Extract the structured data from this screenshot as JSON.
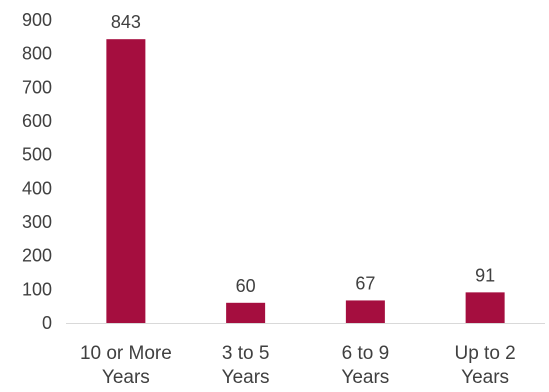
{
  "chart_data": {
    "type": "bar",
    "categories": [
      [
        "10 or More",
        "Years"
      ],
      [
        "3 to 5",
        "Years"
      ],
      [
        "6 to 9",
        "Years"
      ],
      [
        "Up to 2",
        "Years"
      ]
    ],
    "values": [
      843,
      60,
      67,
      91
    ],
    "data_labels": [
      "843",
      "60",
      "67",
      "91"
    ],
    "ylim": [
      0,
      900
    ],
    "yticks": [
      "0",
      "100",
      "200",
      "300",
      "400",
      "500",
      "600",
      "700",
      "800",
      "900"
    ],
    "grid": false,
    "legend": "none",
    "bar_color": "#A50E3F",
    "text_color": "#404040",
    "axis_color": "#D9D9D9"
  }
}
